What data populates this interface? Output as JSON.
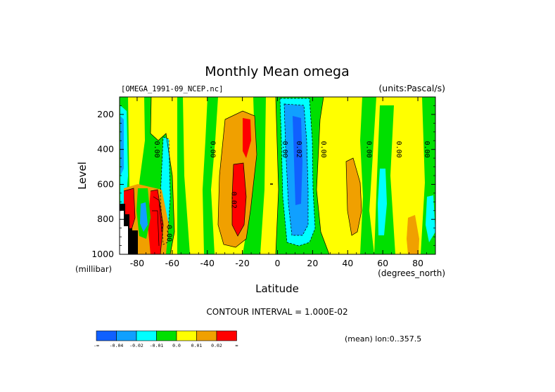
{
  "chart_data": {
    "type": "heatmap",
    "title": "Monthly Mean omega",
    "source_label": "[OMEGA_1991-09_NCEP.nc]",
    "units_label": "(units:Pascal/s)",
    "xlabel": "Latitude",
    "ylabel": "Level",
    "x_unit_label": "(degrees_north)",
    "y_unit_label": "(millibar)",
    "xlim": [
      -90,
      90
    ],
    "ylim": [
      1000,
      100
    ],
    "x_ticks": [
      -80,
      -60,
      -40,
      -20,
      0,
      20,
      40,
      60,
      80
    ],
    "y_ticks": [
      200,
      400,
      600,
      800,
      1000
    ],
    "contour_interval_label": "CONTOUR INTERVAL = 1.000E-02",
    "mean_label": "(mean) lon:0..357.5",
    "colorbar": {
      "colors": [
        "#1060ff",
        "#10a0ff",
        "#00ffff",
        "#00e000",
        "#ffff00",
        "#f0a000",
        "#ff0000"
      ],
      "labels": [
        "-∞",
        "-0.04",
        "-0.02",
        "-0.01",
        "0.0",
        "0.01",
        "0.02",
        "∞"
      ]
    },
    "contour_labels": [
      {
        "text": "0.00",
        "lat": -70,
        "level": 400
      },
      {
        "text": "0.00",
        "lat": -38,
        "level": 400
      },
      {
        "text": "0.00",
        "lat": 3,
        "level": 400
      },
      {
        "text": "0.02",
        "lat": -26,
        "level": 690
      },
      {
        "text": "0.02",
        "lat": 11,
        "level": 400
      },
      {
        "text": "0.00",
        "lat": 25,
        "level": 400
      },
      {
        "text": "0.00",
        "lat": 51,
        "level": 400
      },
      {
        "text": "0.00",
        "lat": 68,
        "level": 400
      },
      {
        "text": "0.00",
        "lat": 84,
        "level": 400
      },
      {
        "text": "0.00",
        "lat": -63,
        "level": 880
      }
    ],
    "regions": [
      {
        "value": "<-0.04",
        "color": "#1060ff",
        "lat": [
          -75,
          -68
        ],
        "level": [
          700,
          950
        ]
      },
      {
        "value": "<-0.04",
        "color": "#1060ff",
        "lat": [
          8,
          15
        ],
        "level": [
          200,
          700
        ]
      },
      {
        "value": "-0.04..-0.02",
        "color": "#10a0ff",
        "lat": [
          -88,
          -86
        ],
        "level": [
          200,
          700
        ]
      },
      {
        "value": "-0.04..-0.02",
        "color": "#10a0ff",
        "lat": [
          4,
          20
        ],
        "level": [
          120,
          860
        ]
      },
      {
        "value": "-0.02..-0.01",
        "color": "#00ffff",
        "lat": [
          -66,
          -61
        ],
        "level": [
          280,
          980
        ]
      },
      {
        "value": "-0.02..-0.01",
        "color": "#00ffff",
        "lat": [
          57,
          62
        ],
        "level": [
          400,
          880
        ]
      },
      {
        "value": "0.01..0.02",
        "color": "#f0a000",
        "lat": [
          -32,
          -10
        ],
        "level": [
          120,
          920
        ]
      },
      {
        "value": "0.01..0.02",
        "color": "#f0a000",
        "lat": [
          43,
          48
        ],
        "level": [
          400,
          820
        ]
      },
      {
        "value": "0.01..0.02",
        "color": "#f0a000",
        "lat": [
          77,
          81
        ],
        "level": [
          760,
          990
        ]
      },
      {
        "value": ">0.02",
        "color": "#ff0000",
        "lat": [
          -27,
          -17
        ],
        "level": [
          200,
          880
        ]
      },
      {
        "value": ">0.02",
        "color": "#ff0000",
        "lat": [
          -85,
          -66
        ],
        "level": [
          630,
          980
        ]
      }
    ]
  }
}
